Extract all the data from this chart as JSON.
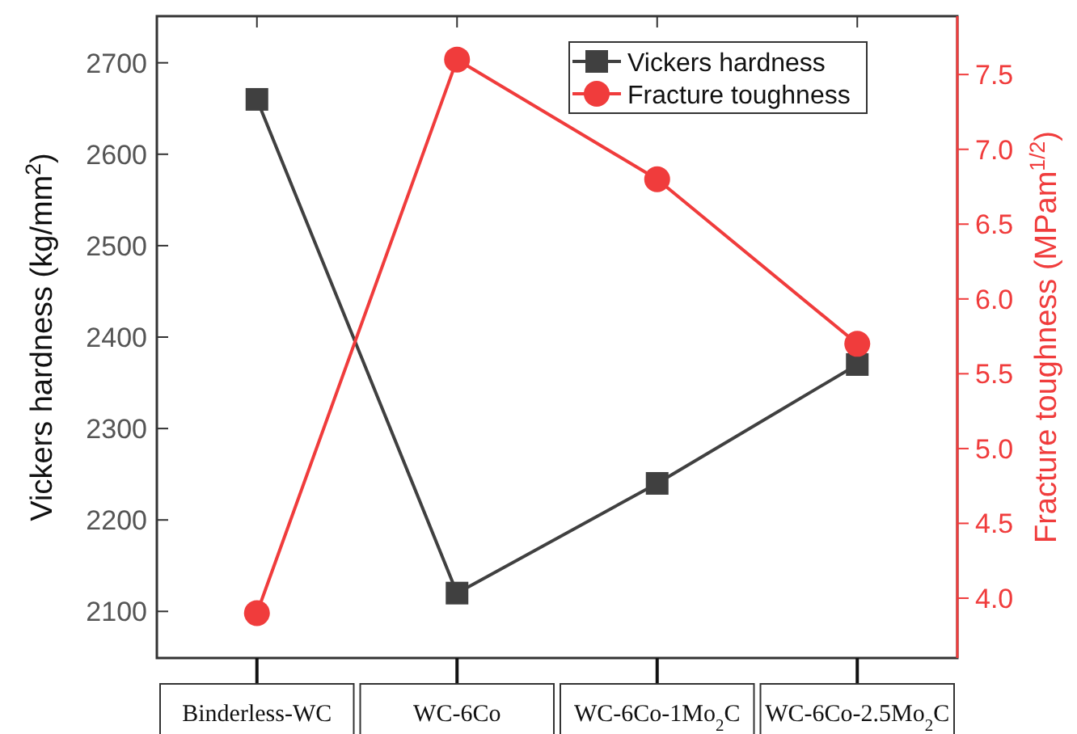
{
  "chart_data": {
    "type": "line",
    "ylabel": "Vickers hardness (kg/mm$^{2}$)",
    "y2label": "Fracture toughness (MPam$^{1/2}$)",
    "categories": [
      "Binderless-WC",
      "WC-6Co",
      "WC-6Co-1Mo$_{2}$C",
      "WC-6Co-2.5Mo$_{2}$C"
    ],
    "series": [
      {
        "name": "Vickers hardness",
        "color": "#404040",
        "values": [
          2660,
          2120,
          2240,
          2370
        ],
        "marker": "square"
      },
      {
        "name": "Fracture toughness",
        "color": "#f03c3c",
        "values": [
          3.9,
          7.6,
          6.8,
          5.7
        ],
        "marker": "circle",
        "axis": "y2"
      }
    ],
    "ylim": [
      2049,
      2751
    ],
    "yticks": [
      2100,
      2200,
      2300,
      2400,
      2500,
      2600,
      2700
    ],
    "y2lim": [
      3.6,
      7.89
    ],
    "y2ticks": [
      {
        "value": 4,
        "label": "4.0"
      },
      {
        "value": 4.5,
        "label": "4.5"
      },
      {
        "value": 5,
        "label": "5.0"
      },
      {
        "value": 5.5,
        "label": "5.5"
      },
      {
        "value": 6,
        "label": "6.0"
      },
      {
        "value": 6.5,
        "label": "6.5"
      },
      {
        "value": 7,
        "label": "7.0"
      },
      {
        "value": 7.5,
        "label": "7.5"
      }
    ],
    "legend": "top right",
    "grid": false,
    "line_style": "solid"
  }
}
